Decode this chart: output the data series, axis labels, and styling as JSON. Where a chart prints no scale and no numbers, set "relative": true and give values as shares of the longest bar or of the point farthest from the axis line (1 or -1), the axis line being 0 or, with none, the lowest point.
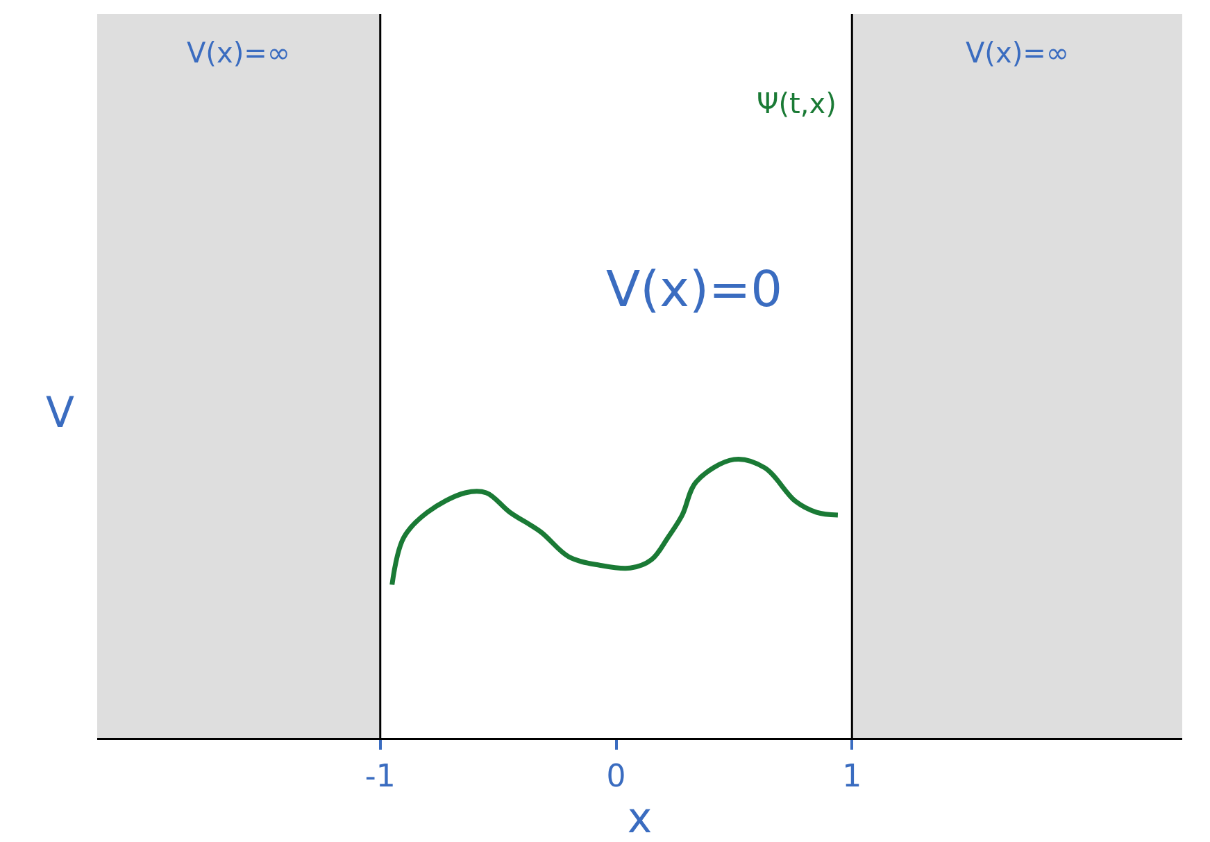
{
  "chart_data": {
    "type": "line",
    "relative": true,
    "xlabel": "x",
    "ylabel": "V",
    "xlim": [
      -2.2,
      2.4
    ],
    "xticks": [
      -1,
      0,
      1
    ],
    "series": [
      {
        "name": "Ψ(t,x)",
        "color": "#1a7a35",
        "x": [
          -0.95,
          -0.9,
          -0.8,
          -0.64,
          -0.55,
          -0.45,
          -0.32,
          -0.2,
          -0.07,
          0.06,
          0.15,
          0.22,
          0.28,
          0.34,
          0.5,
          0.63,
          0.76,
          0.85,
          0.94
        ],
        "values": [
          0.55,
          0.72,
          0.81,
          0.88,
          0.88,
          0.81,
          0.74,
          0.65,
          0.62,
          0.61,
          0.64,
          0.72,
          0.8,
          0.92,
          1,
          0.97,
          0.85,
          0.81,
          0.8
        ]
      }
    ],
    "bands": [
      {
        "axis": "x",
        "from": -2.2,
        "to": -1,
        "label": "V(x)=∞",
        "color": "#dedede"
      },
      {
        "axis": "x",
        "from": 1,
        "to": 2.4,
        "label": "V(x)=∞",
        "color": "#dedede"
      }
    ],
    "ref_lines": [
      {
        "axis": "x",
        "value": -1,
        "color": "#000000"
      },
      {
        "axis": "x",
        "value": 1,
        "color": "#000000"
      }
    ],
    "annotations": [
      "V(x)=0"
    ],
    "grid": false,
    "legend": false,
    "line_style": "solid"
  }
}
